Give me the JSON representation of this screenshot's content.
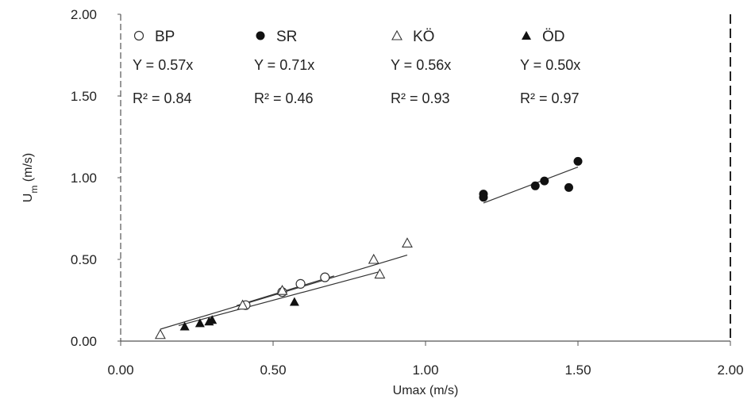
{
  "chart_data": {
    "type": "scatter",
    "xlabel": "Umax (m/s)",
    "ylabel": "Um (m/s)",
    "ylabel_main": "U",
    "ylabel_sub": "m",
    "ylabel_unit": " (m/s)",
    "xlim": [
      0.0,
      2.0
    ],
    "ylim": [
      0.0,
      2.0
    ],
    "x_ticks": [
      {
        "value": 0.0,
        "label": "0.00"
      },
      {
        "value": 0.5,
        "label": "0.50"
      },
      {
        "value": 1.0,
        "label": "1.00"
      },
      {
        "value": 1.5,
        "label": "1.50"
      },
      {
        "value": 2.0,
        "label": "2.00"
      }
    ],
    "y_ticks": [
      {
        "value": 0.0,
        "label": "0.00"
      },
      {
        "value": 0.5,
        "label": "0.50"
      },
      {
        "value": 1.0,
        "label": "1.00"
      },
      {
        "value": 1.5,
        "label": "1.50"
      },
      {
        "value": 2.0,
        "label": "2.00"
      }
    ],
    "grid": false,
    "legend_position": "top",
    "series": [
      {
        "name": "BP",
        "marker": "open-circle",
        "color": "#333333",
        "equation": "Y = 0.57x",
        "r2": "R² = 0.84",
        "points": [
          [
            0.41,
            0.22
          ],
          [
            0.53,
            0.3
          ],
          [
            0.59,
            0.35
          ],
          [
            0.67,
            0.39
          ]
        ],
        "fit_range": [
          0.38,
          0.7
        ]
      },
      {
        "name": "SR",
        "marker": "filled-circle",
        "color": "#111111",
        "equation": "Y = 0.71x",
        "r2": "R² = 0.46",
        "points": [
          [
            1.19,
            0.9
          ],
          [
            1.19,
            0.88
          ],
          [
            1.36,
            0.95
          ],
          [
            1.39,
            0.98
          ],
          [
            1.47,
            0.94
          ],
          [
            1.5,
            1.1
          ]
        ],
        "fit_range": [
          1.19,
          1.5
        ]
      },
      {
        "name": "KÖ",
        "marker": "open-triangle",
        "color": "#333333",
        "equation": "Y = 0.56x",
        "r2": "R² = 0.93",
        "points": [
          [
            0.13,
            0.04
          ],
          [
            0.4,
            0.22
          ],
          [
            0.53,
            0.31
          ],
          [
            0.83,
            0.5
          ],
          [
            0.85,
            0.41
          ],
          [
            0.94,
            0.6
          ]
        ],
        "fit_range": [
          0.13,
          0.94
        ]
      },
      {
        "name": "ÖD",
        "marker": "filled-triangle",
        "color": "#111111",
        "equation": "Y = 0.50x",
        "r2": "R² = 0.97",
        "points": [
          [
            0.21,
            0.09
          ],
          [
            0.26,
            0.11
          ],
          [
            0.29,
            0.12
          ],
          [
            0.3,
            0.13
          ],
          [
            0.57,
            0.24
          ]
        ],
        "fit_range": [
          0.19,
          0.85
        ]
      }
    ]
  }
}
